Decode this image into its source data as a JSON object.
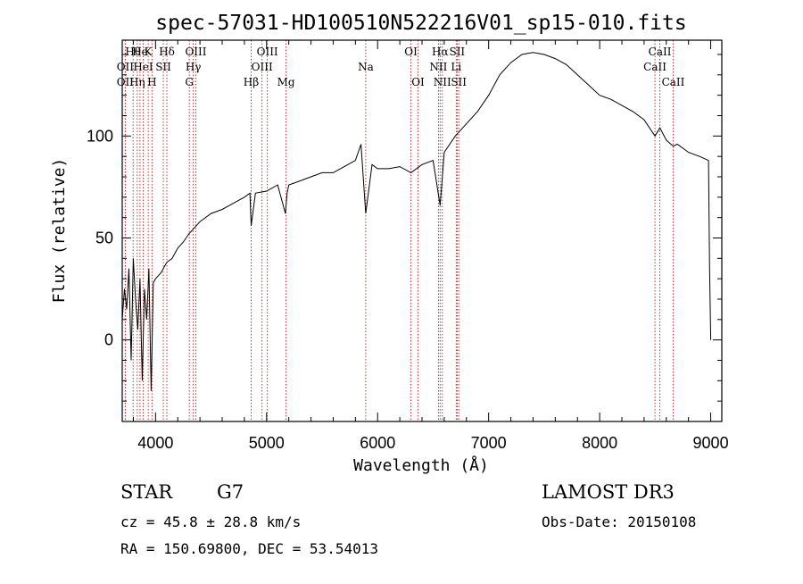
{
  "chart_data": {
    "type": "line",
    "title": "spec-57031-HD100510N522216V01_sp15-010.fits",
    "xlabel": "Wavelength (Å)",
    "ylabel": "Flux (relative)",
    "xlim": [
      3700,
      9100
    ],
    "ylim": [
      -40,
      147
    ],
    "grid": false,
    "xticks": [
      4000,
      5000,
      6000,
      7000,
      8000,
      9000
    ],
    "yticks": [
      0,
      50,
      100
    ],
    "xtick_labels": [
      "4000",
      "5000",
      "6000",
      "7000",
      "8000",
      "9000"
    ],
    "ytick_labels": [
      "0",
      "50",
      "100"
    ],
    "series": [
      {
        "name": "spectrum",
        "x": [
          3700,
          3720,
          3740,
          3760,
          3780,
          3800,
          3820,
          3840,
          3860,
          3880,
          3900,
          3920,
          3940,
          3960,
          3980,
          4000,
          4050,
          4100,
          4150,
          4200,
          4250,
          4300,
          4350,
          4400,
          4500,
          4600,
          4700,
          4800,
          4850,
          4861,
          4900,
          5000,
          5100,
          5170,
          5185,
          5200,
          5300,
          5400,
          5500,
          5600,
          5700,
          5800,
          5850,
          5893,
          5950,
          6000,
          6100,
          6200,
          6300,
          6400,
          6500,
          6563,
          6600,
          6700,
          6800,
          6900,
          7000,
          7100,
          7200,
          7300,
          7400,
          7500,
          7600,
          7700,
          7800,
          7900,
          8000,
          8100,
          8200,
          8300,
          8400,
          8498,
          8542,
          8600,
          8662,
          8700,
          8800,
          8900,
          8980,
          8990,
          9000
        ],
        "y": [
          10,
          25,
          15,
          35,
          -10,
          40,
          20,
          5,
          30,
          -20,
          25,
          10,
          35,
          -25,
          28,
          30,
          33,
          38,
          40,
          45,
          48,
          52,
          55,
          58,
          62,
          64,
          67,
          70,
          72,
          56,
          72,
          73,
          76,
          62,
          72,
          76,
          78,
          80,
          82,
          82,
          85,
          88,
          96,
          62,
          86,
          84,
          84,
          85,
          82,
          86,
          88,
          66,
          92,
          100,
          106,
          112,
          120,
          130,
          136,
          140,
          141,
          140,
          138,
          135,
          130,
          125,
          120,
          118,
          115,
          112,
          108,
          100,
          104,
          98,
          95,
          96,
          92,
          90,
          88,
          35,
          0
        ]
      }
    ],
    "spectral_lines": [
      {
        "label": "Hθ",
        "row": 1,
        "wl": 3798
      },
      {
        "label": "He",
        "row": 1,
        "wl": 3860
      },
      {
        "label": "K",
        "row": 1,
        "wl": 3934
      },
      {
        "label": "Hδ",
        "row": 1,
        "wl": 4102
      },
      {
        "label": "OIII",
        "row": 1,
        "wl": 4363
      },
      {
        "label": "OIII",
        "row": 1,
        "wl": 5007
      },
      {
        "label": "OI",
        "row": 1,
        "wl": 6300
      },
      {
        "label": "Hα",
        "row": 1,
        "wl": 6563
      },
      {
        "label": "SII",
        "row": 1,
        "wl": 6716
      },
      {
        "label": "CaII",
        "row": 1,
        "wl": 8542
      },
      {
        "label": "OII",
        "row": 2,
        "wl": 3727
      },
      {
        "label": "HeI",
        "row": 2,
        "wl": 3889
      },
      {
        "label": "SII",
        "row": 2,
        "wl": 4070
      },
      {
        "label": "Hγ",
        "row": 2,
        "wl": 4340
      },
      {
        "label": "OIII",
        "row": 2,
        "wl": 4959
      },
      {
        "label": "Na",
        "row": 2,
        "wl": 5893
      },
      {
        "label": "NII",
        "row": 2,
        "wl": 6548
      },
      {
        "label": "Li",
        "row": 2,
        "wl": 6708
      },
      {
        "label": "CaII",
        "row": 2,
        "wl": 8498
      },
      {
        "label": "OII",
        "row": 3,
        "wl": 3727
      },
      {
        "label": "Hη",
        "row": 3,
        "wl": 3835
      },
      {
        "label": "H",
        "row": 3,
        "wl": 3968
      },
      {
        "label": "G",
        "row": 3,
        "wl": 4304
      },
      {
        "label": "Hβ",
        "row": 3,
        "wl": 4861
      },
      {
        "label": "Mg",
        "row": 3,
        "wl": 5175
      },
      {
        "label": "OI",
        "row": 3,
        "wl": 6364
      },
      {
        "label": "NII",
        "row": 3,
        "wl": 6583
      },
      {
        "label": "SII",
        "row": 3,
        "wl": 6731
      },
      {
        "label": "CaII",
        "row": 3,
        "wl": 8662
      }
    ]
  },
  "info": {
    "object_class": "STAR",
    "subclass": "G7",
    "cz": "cz = 45.8 ± 28.8 km/s",
    "coords": "RA = 150.69800, DEC =  53.54013",
    "survey": "LAMOST DR3",
    "obs_date": "Obs-Date: 20150108"
  },
  "colors": {
    "spectrum": "#000000",
    "line_marker": "#b22222",
    "axes": "#000000"
  }
}
